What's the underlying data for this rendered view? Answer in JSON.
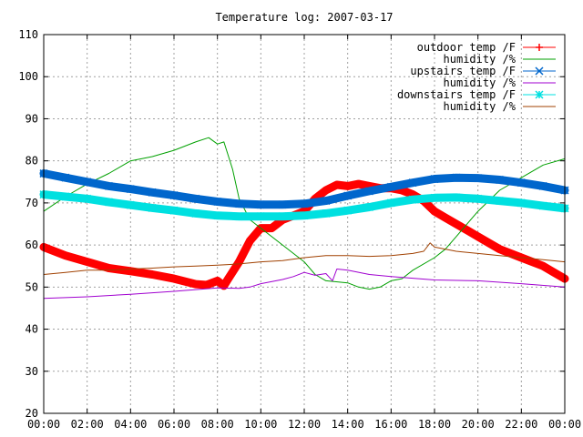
{
  "chart_data": {
    "type": "line",
    "title": "Temperature log: 2007-03-17",
    "xlabel": "",
    "ylabel": "",
    "xlim": [
      0,
      24
    ],
    "ylim": [
      20,
      110
    ],
    "x_ticks": [
      "00:00",
      "02:00",
      "04:00",
      "06:00",
      "08:00",
      "10:00",
      "12:00",
      "14:00",
      "16:00",
      "18:00",
      "20:00",
      "22:00",
      "00:00"
    ],
    "y_ticks": [
      20,
      30,
      40,
      50,
      60,
      70,
      80,
      90,
      100,
      110
    ],
    "grid": true,
    "legend_position": "top-right",
    "series": [
      {
        "name": "outdoor temp /F",
        "color": "#ff0000",
        "marker": "plus",
        "points": [
          [
            0,
            59.5
          ],
          [
            1,
            57.5
          ],
          [
            2,
            56
          ],
          [
            3,
            54.5
          ],
          [
            4,
            53.8
          ],
          [
            5,
            53
          ],
          [
            6,
            52
          ],
          [
            7,
            50.7
          ],
          [
            7.5,
            50.5
          ],
          [
            8,
            51.5
          ],
          [
            8.3,
            50.3
          ],
          [
            8.5,
            52
          ],
          [
            9,
            56
          ],
          [
            9.5,
            61
          ],
          [
            10,
            64
          ],
          [
            10.5,
            64
          ],
          [
            11,
            66
          ],
          [
            11.5,
            67
          ],
          [
            12,
            68
          ],
          [
            12.5,
            71
          ],
          [
            13,
            73
          ],
          [
            13.5,
            74.3
          ],
          [
            14,
            74
          ],
          [
            14.5,
            74.5
          ],
          [
            15,
            74
          ],
          [
            15.5,
            73.5
          ],
          [
            16,
            73.5
          ],
          [
            16.5,
            73
          ],
          [
            17,
            72
          ],
          [
            17.5,
            70.5
          ],
          [
            18,
            68
          ],
          [
            18.5,
            66.5
          ],
          [
            19,
            65
          ],
          [
            19.5,
            63.5
          ],
          [
            20,
            62
          ],
          [
            20.5,
            60.5
          ],
          [
            21,
            59
          ],
          [
            22,
            57
          ],
          [
            23,
            55
          ],
          [
            23.5,
            53.5
          ],
          [
            24,
            52
          ]
        ]
      },
      {
        "name": "humidity /%",
        "color": "#00a000",
        "marker": "none",
        "points": [
          [
            0,
            68
          ],
          [
            1,
            71.5
          ],
          [
            2,
            74.5
          ],
          [
            3,
            77
          ],
          [
            4,
            80
          ],
          [
            5,
            81
          ],
          [
            6,
            82.5
          ],
          [
            7,
            84.5
          ],
          [
            7.6,
            85.5
          ],
          [
            8,
            84
          ],
          [
            8.3,
            84.5
          ],
          [
            8.7,
            78
          ],
          [
            9,
            71
          ],
          [
            9.5,
            66
          ],
          [
            10,
            64
          ],
          [
            11,
            60
          ],
          [
            12,
            56
          ],
          [
            12.5,
            53
          ],
          [
            13,
            51.5
          ],
          [
            14,
            51
          ],
          [
            14.5,
            50
          ],
          [
            15,
            49.5
          ],
          [
            15.5,
            50
          ],
          [
            16,
            51.5
          ],
          [
            16.5,
            52
          ],
          [
            17,
            54
          ],
          [
            18,
            57
          ],
          [
            18.5,
            59
          ],
          [
            19,
            62
          ],
          [
            20,
            68
          ],
          [
            21,
            73
          ],
          [
            22,
            76
          ],
          [
            23,
            79
          ],
          [
            24,
            80.5
          ]
        ]
      },
      {
        "name": "upstairs temp /F",
        "color": "#0066cc",
        "marker": "x",
        "points": [
          [
            0,
            77
          ],
          [
            1,
            76
          ],
          [
            2,
            75
          ],
          [
            3,
            74
          ],
          [
            4,
            73.3
          ],
          [
            5,
            72.5
          ],
          [
            6,
            71.8
          ],
          [
            7,
            71
          ],
          [
            8,
            70.3
          ],
          [
            9,
            69.8
          ],
          [
            10,
            69.6
          ],
          [
            11,
            69.6
          ],
          [
            12,
            69.8
          ],
          [
            13,
            70.5
          ],
          [
            14,
            71.7
          ],
          [
            15,
            72.8
          ],
          [
            16,
            73.8
          ],
          [
            17,
            74.8
          ],
          [
            18,
            75.7
          ],
          [
            19,
            76
          ],
          [
            20,
            75.9
          ],
          [
            21,
            75.5
          ],
          [
            22,
            74.8
          ],
          [
            23,
            74
          ],
          [
            24,
            73
          ]
        ]
      },
      {
        "name": "humidity /%",
        "color": "#a000d0",
        "marker": "none",
        "points": [
          [
            0,
            47.3
          ],
          [
            2,
            47.7
          ],
          [
            4,
            48.3
          ],
          [
            6,
            49
          ],
          [
            8,
            49.8
          ],
          [
            9,
            49.7
          ],
          [
            9.5,
            50
          ],
          [
            10,
            50.8
          ],
          [
            11,
            51.8
          ],
          [
            11.5,
            52.5
          ],
          [
            12,
            53.5
          ],
          [
            12.5,
            52.8
          ],
          [
            13,
            53.2
          ],
          [
            13.3,
            51.5
          ],
          [
            13.5,
            54.3
          ],
          [
            14,
            54
          ],
          [
            15,
            53
          ],
          [
            16,
            52.5
          ],
          [
            17,
            52.1
          ],
          [
            18,
            51.7
          ],
          [
            20,
            51.5
          ],
          [
            22,
            50.8
          ],
          [
            24,
            50
          ]
        ]
      },
      {
        "name": "downstairs temp /F",
        "color": "#00e0e0",
        "marker": "star",
        "points": [
          [
            0,
            72
          ],
          [
            1,
            71.5
          ],
          [
            2,
            71
          ],
          [
            3,
            70.2
          ],
          [
            4,
            69.5
          ],
          [
            5,
            68.8
          ],
          [
            6,
            68.2
          ],
          [
            7,
            67.5
          ],
          [
            8,
            67
          ],
          [
            9,
            66.8
          ],
          [
            10,
            66.8
          ],
          [
            11,
            66.8
          ],
          [
            12,
            67
          ],
          [
            13,
            67.5
          ],
          [
            14,
            68.2
          ],
          [
            15,
            69
          ],
          [
            16,
            70
          ],
          [
            17,
            70.8
          ],
          [
            18,
            71.2
          ],
          [
            19,
            71.3
          ],
          [
            20,
            71
          ],
          [
            21,
            70.5
          ],
          [
            22,
            70
          ],
          [
            23,
            69.3
          ],
          [
            24,
            68.7
          ]
        ]
      },
      {
        "name": "humidity /%",
        "color": "#a04000",
        "marker": "none",
        "points": [
          [
            0,
            53
          ],
          [
            1,
            53.5
          ],
          [
            2,
            54
          ],
          [
            3,
            54
          ],
          [
            4,
            54.3
          ],
          [
            5,
            54.5
          ],
          [
            6,
            54.8
          ],
          [
            7,
            55
          ],
          [
            8,
            55.2
          ],
          [
            9,
            55.5
          ],
          [
            10,
            56
          ],
          [
            11,
            56.3
          ],
          [
            12,
            57
          ],
          [
            13,
            57.5
          ],
          [
            14,
            57.5
          ],
          [
            15,
            57.3
          ],
          [
            16,
            57.5
          ],
          [
            17,
            58
          ],
          [
            17.5,
            58.5
          ],
          [
            17.8,
            60.5
          ],
          [
            18,
            59.5
          ],
          [
            19,
            58.5
          ],
          [
            20,
            58
          ],
          [
            21,
            57.5
          ],
          [
            22,
            57
          ],
          [
            23,
            56.5
          ],
          [
            24,
            56
          ]
        ]
      }
    ]
  }
}
